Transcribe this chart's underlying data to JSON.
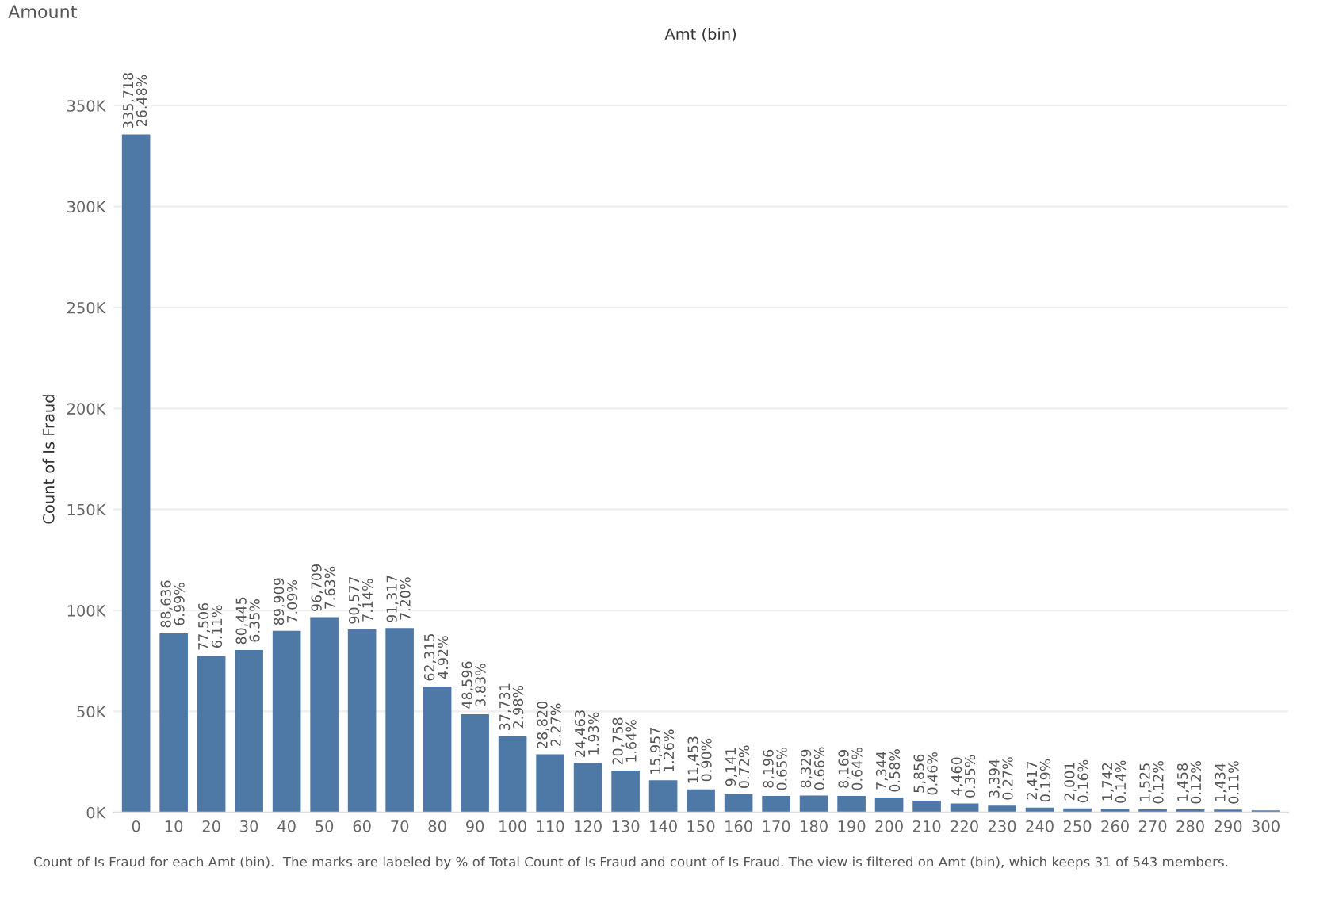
{
  "chart_data": {
    "type": "bar",
    "title": "Amount",
    "xlabel": "Amt (bin)",
    "ylabel": "Count of Is Fraud",
    "categories": [
      "0",
      "10",
      "20",
      "30",
      "40",
      "50",
      "60",
      "70",
      "80",
      "90",
      "100",
      "110",
      "120",
      "130",
      "140",
      "150",
      "160",
      "170",
      "180",
      "190",
      "200",
      "210",
      "220",
      "230",
      "240",
      "250",
      "260",
      "270",
      "280",
      "290",
      "300"
    ],
    "values": [
      335718,
      88636,
      77506,
      80445,
      89909,
      96709,
      90577,
      91317,
      62315,
      48596,
      37731,
      28820,
      24463,
      20758,
      15957,
      11453,
      9141,
      8196,
      8329,
      8169,
      7344,
      5856,
      4460,
      3394,
      2417,
      2001,
      1742,
      1525,
      1458,
      1434,
      1000
    ],
    "value_labels": [
      "335,718\n26.48%",
      "88,636\n6.99%",
      "77,506\n6.11%",
      "80,445\n6.35%",
      "89,909\n7.09%",
      "96,709\n7.63%",
      "90,577\n7.14%",
      "91,317\n7.20%",
      "62,315\n4.92%",
      "48,596\n3.83%",
      "37,731\n2.98%",
      "28,820\n2.27%",
      "24,463\n1.93%",
      "20,758\n1.64%",
      "15,957\n1.26%",
      "11,453\n0.90%",
      "9,141\n0.72%",
      "8,196\n0.65%",
      "8,329\n0.66%",
      "8,169\n0.64%",
      "7,344\n0.58%",
      "5,856\n0.46%",
      "4,460\n0.35%",
      "3,394\n0.27%",
      "2,417\n0.19%",
      "2,001\n0.16%",
      "1,742\n0.14%",
      "1,525\n0.12%",
      "1,458\n0.12%",
      "1,434\n0.11%",
      null
    ],
    "color": "#4e79a7",
    "ylim": [
      0,
      350000
    ],
    "yticks": [
      {
        "value": 0,
        "label": "0K"
      },
      {
        "value": 50000,
        "label": "50K"
      },
      {
        "value": 100000,
        "label": "100K"
      },
      {
        "value": 150000,
        "label": "150K"
      },
      {
        "value": 200000,
        "label": "200K"
      },
      {
        "value": 250000,
        "label": "250K"
      },
      {
        "value": 300000,
        "label": "300K"
      },
      {
        "value": 350000,
        "label": "350K"
      }
    ],
    "grid": "y",
    "annotations": [
      "Count of Is Fraud for each Amt (bin).  The marks are labeled by % of Total Count of Is Fraud and count of Is Fraud. The view is filtered on Amt (bin), which keeps 31 of 543 members."
    ]
  }
}
